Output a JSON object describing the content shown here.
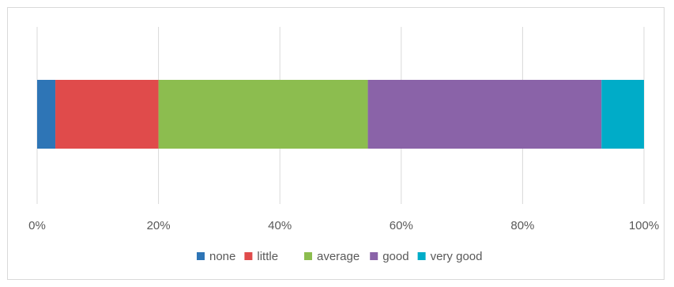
{
  "chart_data": {
    "type": "bar",
    "orientation": "horizontal",
    "stacked": true,
    "categories": [
      ""
    ],
    "series": [
      {
        "name": "none",
        "values": [
          3
        ],
        "color": "#2e75b6"
      },
      {
        "name": "little",
        "values": [
          17
        ],
        "color": "#e04b4b"
      },
      {
        "name": "average",
        "values": [
          34.5
        ],
        "color": "#8cbd4f"
      },
      {
        "name": "good",
        "values": [
          38.5
        ],
        "color": "#8a63a8"
      },
      {
        "name": "very good",
        "values": [
          7
        ],
        "color": "#00acc8"
      }
    ],
    "xlim": [
      0,
      100
    ],
    "x_ticks": [
      "0%",
      "20%",
      "40%",
      "60%",
      "80%",
      "100%"
    ],
    "title": "",
    "xlabel": "",
    "ylabel": "",
    "grid": true,
    "legend": "bottom-center"
  }
}
